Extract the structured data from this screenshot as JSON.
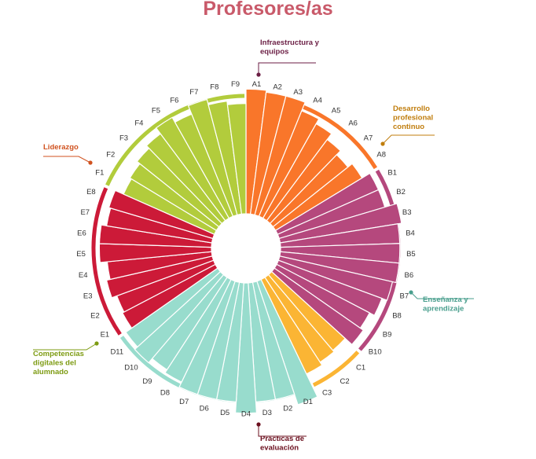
{
  "title": "Profesores/as",
  "chart_data": {
    "type": "radial-bar",
    "title": "Profesores/as",
    "categories": [
      {
        "key": "A",
        "name": "Liderazgo",
        "color": "#f9762a",
        "items": [
          "A1",
          "A2",
          "A3",
          "A4",
          "A5",
          "A6",
          "A7",
          "A8"
        ],
        "values": [
          69,
          68,
          68,
          63,
          60,
          56,
          53,
          56
        ]
      },
      {
        "key": "B",
        "name": "Infraestructura y equipos",
        "color": "#b5487d",
        "items": [
          "B1",
          "B2",
          "B3",
          "B4",
          "B5",
          "B6",
          "B7",
          "B8",
          "B9",
          "B10"
        ],
        "values": [
          61,
          61,
          68,
          66,
          66,
          66,
          64,
          61,
          58,
          60
        ]
      },
      {
        "key": "C",
        "name": "Desarrollo profesional continuo",
        "color": "#fbb534",
        "items": [
          "C1",
          "C2",
          "C3"
        ],
        "values": [
          55,
          56,
          58
        ]
      },
      {
        "key": "D",
        "name": "Enseñanza y aprendizaje",
        "color": "#98dccd",
        "items": [
          "D1",
          "D2",
          "D3",
          "D4",
          "D5",
          "D6",
          "D7",
          "D8",
          "D9",
          "D10",
          "D11"
        ],
        "values": [
          72,
          66,
          66,
          72,
          66,
          66,
          66,
          63,
          61,
          64,
          62
        ]
      },
      {
        "key": "E",
        "name": "Prácticas de evaluación",
        "color": "#cc1a38",
        "items": [
          "E1",
          "E2",
          "E3",
          "E4",
          "E5",
          "E6",
          "E7",
          "E8"
        ],
        "values": [
          58,
          57,
          60,
          58,
          62,
          62,
          59,
          60
        ]
      },
      {
        "key": "F",
        "name": "Competencias digitales del alumnado",
        "color": "#b2cc3c",
        "items": [
          "F1",
          "F2",
          "F3",
          "F4",
          "F5",
          "F6",
          "F7",
          "F8",
          "F9"
        ],
        "values": [
          55,
          56,
          58,
          60,
          64,
          61,
          66,
          63,
          61
        ]
      }
    ]
  }
}
